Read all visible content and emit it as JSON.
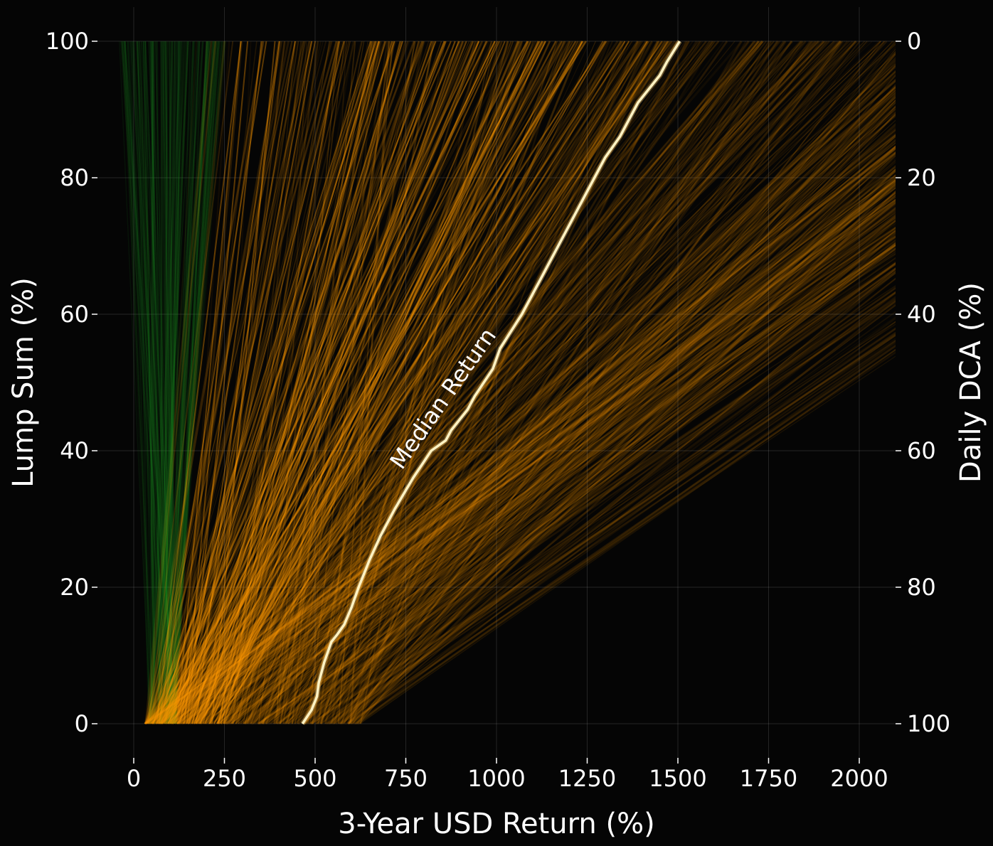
{
  "chart_data": {
    "type": "line",
    "title": "",
    "xlabel": "3-Year USD Return (%)",
    "ylabel": "Lump Sum (%)",
    "ylabel_right": "Daily DCA (%)",
    "xlim": [
      -100,
      2100
    ],
    "ylim": [
      -5,
      105
    ],
    "x_ticks": [
      0,
      250,
      500,
      750,
      1000,
      1250,
      1500,
      1750,
      2000
    ],
    "y_ticks": [
      0,
      20,
      40,
      60,
      80,
      100
    ],
    "y_ticks_right": [
      100,
      80,
      60,
      40,
      20,
      0
    ],
    "grid": true,
    "background": "#050505",
    "colors": {
      "lines": "#ff9900",
      "low_lines": "#1f9a24",
      "median": "#fff3c4",
      "text": "#ffffff"
    },
    "annotation": {
      "text": "Median Return",
      "x": 870,
      "y": 47,
      "rotation_deg": -55
    },
    "series": [
      {
        "name": "Median Return",
        "x": [
          465,
          490,
          505,
          510,
          525,
          545,
          560,
          580,
          600,
          620,
          650,
          680,
          720,
          770,
          820,
          860,
          875,
          920,
          940,
          990,
          1010,
          1070,
          1130,
          1190,
          1250,
          1300,
          1340,
          1390,
          1450,
          1470,
          1505
        ],
        "y": [
          0,
          2,
          4,
          6,
          9,
          12,
          13,
          14.5,
          17,
          20,
          24,
          27.5,
          31.5,
          36,
          40,
          41.5,
          43,
          46,
          48,
          52,
          55,
          60,
          66,
          72,
          78,
          83,
          86,
          91,
          95,
          97,
          100
        ]
      }
    ]
  }
}
